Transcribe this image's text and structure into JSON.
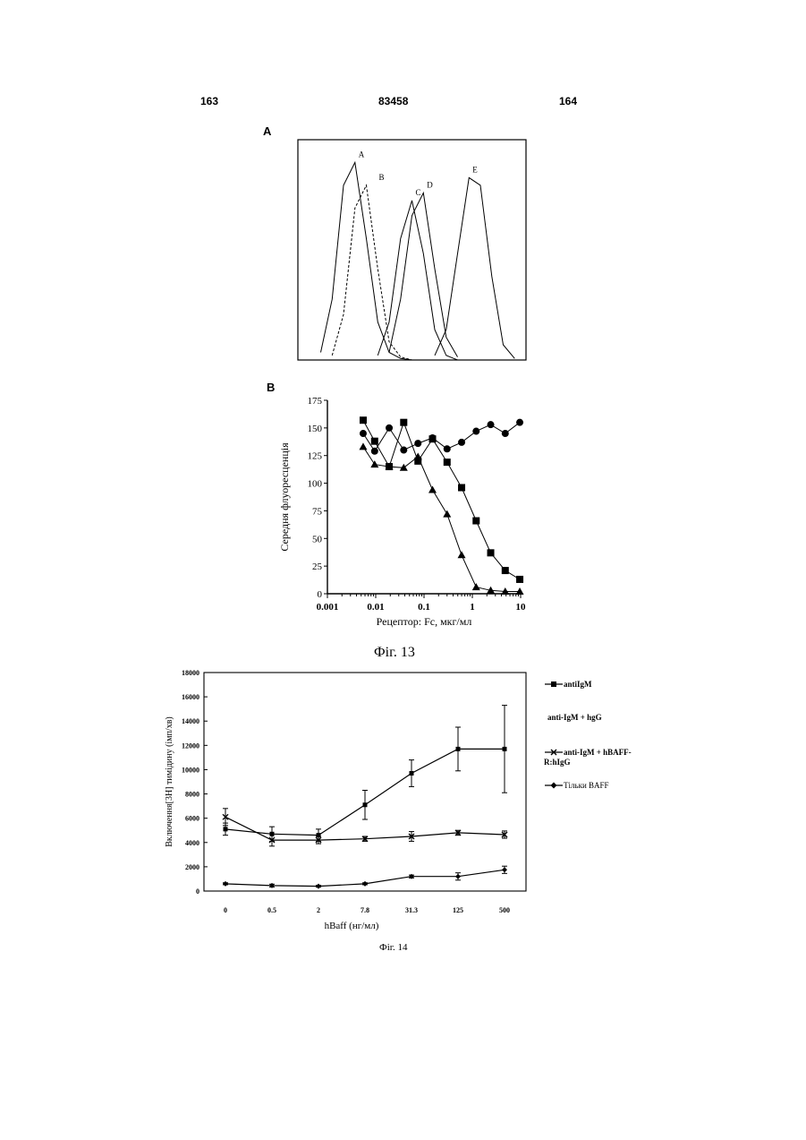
{
  "header": {
    "left_page": "163",
    "doc_number": "83458",
    "right_page": "164"
  },
  "fig13": {
    "panel_a": {
      "label": "A",
      "peak_labels": [
        "A",
        "B",
        "C",
        "D",
        "E"
      ]
    },
    "panel_b": {
      "label": "B",
      "caption": "Фіг. 13"
    }
  },
  "fig14": {
    "caption": "Фіг. 14",
    "legend": {
      "antiigm": "antiIgM",
      "antiigm_hbgg": "anti-IgM + hgG",
      "antiigm_hbaff": "anti-IgM + hBAFF-R:hIgG",
      "baff_only": "Тільки BAFF"
    }
  },
  "chart_data": [
    {
      "type": "line",
      "title": "",
      "xlabel": "",
      "ylabel": "",
      "series": [
        {
          "name": "A",
          "x": [
            1.0,
            1.5,
            2.0,
            2.5,
            3.0,
            3.5,
            4.0,
            4.5,
            5.0
          ],
          "values": [
            5,
            40,
            115,
            130,
            80,
            25,
            5,
            1,
            0
          ]
        },
        {
          "name": "B",
          "x": [
            1.5,
            2.0,
            2.5,
            3.0,
            3.5,
            4.0,
            4.5,
            5.0
          ],
          "values": [
            3,
            30,
            100,
            115,
            60,
            12,
            2,
            0
          ]
        },
        {
          "name": "C",
          "x": [
            3.5,
            4.0,
            4.5,
            5.0,
            5.5,
            6.0,
            6.5,
            7.0
          ],
          "values": [
            3,
            25,
            80,
            105,
            70,
            20,
            3,
            0
          ]
        },
        {
          "name": "D",
          "x": [
            4.0,
            4.5,
            5.0,
            5.5,
            6.0,
            6.5,
            7.0
          ],
          "values": [
            5,
            40,
            95,
            110,
            60,
            15,
            2
          ]
        },
        {
          "name": "E",
          "x": [
            6.0,
            6.5,
            7.0,
            7.5,
            8.0,
            8.5,
            9.0,
            9.5
          ],
          "values": [
            3,
            20,
            70,
            120,
            115,
            55,
            10,
            1
          ]
        }
      ]
    },
    {
      "type": "line",
      "title": "",
      "xlabel": "Рецептор: Fc, мкг/мл",
      "ylabel": "Середня флуоресценція",
      "xscale": "log",
      "xlim": [
        0.001,
        10
      ],
      "ylim": [
        0,
        175
      ],
      "xticks": [
        "0.001",
        "0.01",
        "0.1",
        "1",
        "10"
      ],
      "yticks": [
        "0",
        "25",
        "50",
        "75",
        "100",
        "125",
        "150",
        "175"
      ],
      "series": [
        {
          "marker": "square",
          "x": [
            0.0055,
            0.0095,
            0.019,
            0.038,
            0.075,
            0.15,
            0.3,
            0.6,
            1.2,
            2.4,
            4.8,
            9.6
          ],
          "values": [
            157,
            138,
            115,
            155,
            120,
            140,
            119,
            96,
            66,
            37,
            21,
            13
          ]
        },
        {
          "marker": "circle",
          "x": [
            0.0055,
            0.0095,
            0.019,
            0.038,
            0.075,
            0.15,
            0.3,
            0.6,
            1.2,
            2.4,
            4.8,
            9.6
          ],
          "values": [
            145,
            129,
            150,
            130,
            136,
            141,
            131,
            137,
            147,
            153,
            145,
            155
          ]
        },
        {
          "marker": "triangle",
          "x": [
            0.0055,
            0.0095,
            0.019,
            0.038,
            0.075,
            0.15,
            0.3,
            0.6,
            1.2,
            2.4,
            4.8,
            9.6
          ],
          "values": [
            133,
            117,
            115,
            114,
            124,
            94,
            72,
            35,
            6,
            3,
            2,
            2
          ]
        }
      ]
    },
    {
      "type": "line",
      "title": "",
      "xlabel": "hBaff (нг/мл)",
      "ylabel": "Включення[3H] тимідину (імп/хв)",
      "categories": [
        "0",
        "0.5",
        "2",
        "7.8",
        "31.3",
        "125",
        "500"
      ],
      "ylim": [
        0,
        18000
      ],
      "yticks": [
        "0",
        "2000",
        "4000",
        "6000",
        "8000",
        "10000",
        "12000",
        "14000",
        "16000",
        "18000"
      ],
      "series": [
        {
          "name": "antiIgM",
          "values": [
            5100,
            4700,
            4600,
            7100,
            9700,
            11700,
            11700
          ],
          "errors": [
            500,
            600,
            500,
            1200,
            1100,
            1800,
            3600
          ]
        },
        {
          "name": "anti-IgM + hBAFF-R:hIgG",
          "values": [
            6100,
            4200,
            4200,
            4300,
            4500,
            4800,
            4650
          ],
          "errors": [
            700,
            500,
            300,
            200,
            400,
            200,
            300
          ]
        },
        {
          "name": "Тільки BAFF",
          "values": [
            600,
            450,
            400,
            600,
            1200,
            1200,
            1750
          ],
          "errors": [
            80,
            120,
            80,
            80,
            120,
            300,
            300
          ]
        }
      ]
    }
  ]
}
